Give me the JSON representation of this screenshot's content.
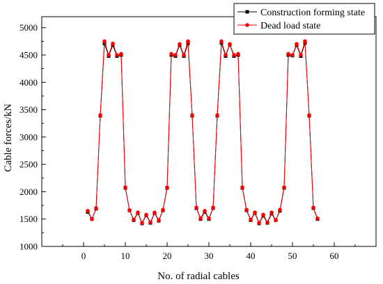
{
  "chart_data": {
    "type": "line",
    "xlabel": "No. of radial cables",
    "ylabel": "Cable forces/kN",
    "xlim": [
      -10,
      70
    ],
    "ylim": [
      1000,
      5200
    ],
    "xticks": [
      0,
      10,
      20,
      30,
      40,
      50,
      60
    ],
    "yticks": [
      1000,
      1500,
      2000,
      2500,
      3000,
      3500,
      4000,
      4500,
      5000
    ],
    "grid": false,
    "legend_position": "top-right",
    "x": [
      1,
      2,
      3,
      4,
      5,
      6,
      7,
      8,
      9,
      10,
      11,
      12,
      13,
      14,
      15,
      16,
      17,
      18,
      19,
      20,
      21,
      22,
      23,
      24,
      25,
      26,
      27,
      28,
      29,
      30,
      31,
      32,
      33,
      34,
      35,
      36,
      37,
      38,
      39,
      40,
      41,
      42,
      43,
      44,
      45,
      46,
      47,
      48,
      49,
      50,
      51,
      52,
      53,
      54,
      55,
      56
    ],
    "series": [
      {
        "name": "Construction forming state",
        "color": "#000000",
        "marker": "square",
        "values": [
          1630,
          1500,
          1690,
          3390,
          4710,
          4480,
          4680,
          4480,
          4500,
          2070,
          1660,
          1480,
          1610,
          1420,
          1570,
          1430,
          1610,
          1470,
          1660,
          2070,
          4500,
          4480,
          4680,
          4480,
          4710,
          3390,
          1700,
          1500,
          1630,
          1500,
          1700,
          3390,
          4720,
          4480,
          4690,
          4480,
          4500,
          2070,
          1660,
          1480,
          1610,
          1420,
          1560,
          1430,
          1600,
          1480,
          1650,
          2070,
          4500,
          4490,
          4680,
          4480,
          4720,
          3390,
          1700,
          1500
        ]
      },
      {
        "name": "Dead load state",
        "color": "#ff0000",
        "marker": "circle",
        "values": [
          1650,
          1500,
          1700,
          3400,
          4750,
          4500,
          4710,
          4500,
          4520,
          2080,
          1660,
          1490,
          1620,
          1430,
          1580,
          1440,
          1620,
          1480,
          1670,
          2080,
          4520,
          4500,
          4700,
          4500,
          4750,
          3400,
          1710,
          1510,
          1650,
          1510,
          1710,
          3400,
          4750,
          4500,
          4700,
          4500,
          4520,
          2080,
          1670,
          1490,
          1620,
          1430,
          1580,
          1440,
          1620,
          1480,
          1670,
          2080,
          4520,
          4500,
          4700,
          4500,
          4750,
          3400,
          1710,
          1510
        ]
      }
    ]
  }
}
